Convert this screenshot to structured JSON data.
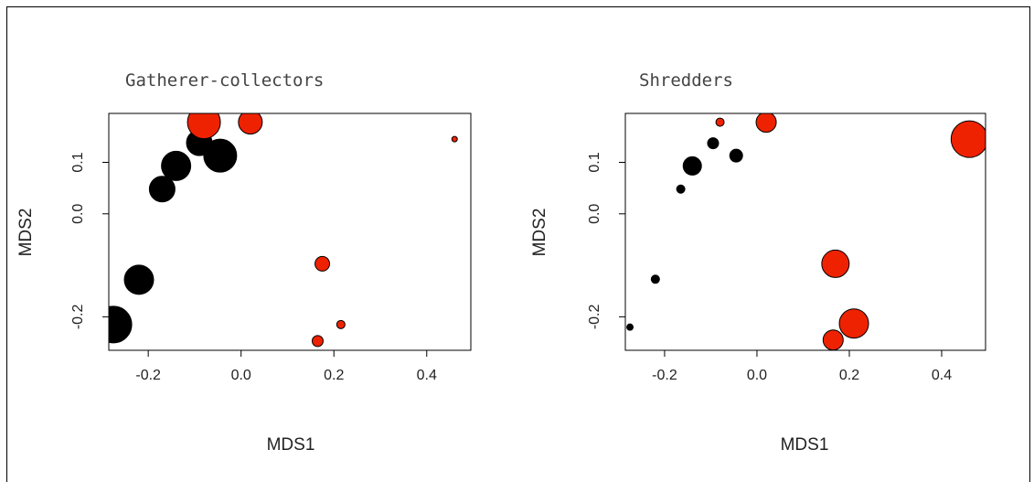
{
  "chart_data": [
    {
      "type": "scatter",
      "title": "Gatherer-collectors",
      "xlabel": "MDS1",
      "ylabel": "MDS2",
      "xlim": [
        -0.285,
        0.495
      ],
      "ylim": [
        -0.265,
        0.195
      ],
      "xticks": [
        "-0.2",
        "0.0",
        "0.2",
        "0.4"
      ],
      "yticks": [
        "-0.2",
        "0.0",
        "0.1"
      ],
      "colors": {
        "group1": "#000000",
        "group2": "#ee2200"
      },
      "points": [
        {
          "x": -0.275,
          "y": -0.215,
          "size": 20,
          "group": "group1"
        },
        {
          "x": -0.22,
          "y": -0.128,
          "size": 16,
          "group": "group1"
        },
        {
          "x": -0.17,
          "y": 0.048,
          "size": 14,
          "group": "group1"
        },
        {
          "x": -0.14,
          "y": 0.093,
          "size": 16,
          "group": "group1"
        },
        {
          "x": -0.09,
          "y": 0.138,
          "size": 14,
          "group": "group1"
        },
        {
          "x": -0.045,
          "y": 0.113,
          "size": 18,
          "group": "group1"
        },
        {
          "x": -0.08,
          "y": 0.178,
          "size": 18,
          "group": "group2"
        },
        {
          "x": 0.02,
          "y": 0.178,
          "size": 13,
          "group": "group2"
        },
        {
          "x": 0.46,
          "y": 0.145,
          "size": 3,
          "group": "group2"
        },
        {
          "x": 0.175,
          "y": -0.097,
          "size": 8,
          "group": "group2"
        },
        {
          "x": 0.215,
          "y": -0.215,
          "size": 4.5,
          "group": "group2"
        },
        {
          "x": 0.165,
          "y": -0.247,
          "size": 6,
          "group": "group2"
        }
      ]
    },
    {
      "type": "scatter",
      "title": "Shredders",
      "xlabel": "MDS1",
      "ylabel": "MDS2",
      "xlim": [
        -0.285,
        0.495
      ],
      "ylim": [
        -0.265,
        0.195
      ],
      "xticks": [
        "-0.2",
        "0.0",
        "0.2",
        "0.4"
      ],
      "yticks": [
        "-0.2",
        "0.0",
        "0.1"
      ],
      "colors": {
        "group1": "#000000",
        "group2": "#ee2200"
      },
      "points": [
        {
          "x": -0.275,
          "y": -0.22,
          "size": 3.5,
          "group": "group1"
        },
        {
          "x": -0.22,
          "y": -0.127,
          "size": 4.5,
          "group": "group1"
        },
        {
          "x": -0.165,
          "y": 0.048,
          "size": 4.5,
          "group": "group1"
        },
        {
          "x": -0.14,
          "y": 0.093,
          "size": 10,
          "group": "group1"
        },
        {
          "x": -0.095,
          "y": 0.137,
          "size": 6,
          "group": "group1"
        },
        {
          "x": -0.045,
          "y": 0.113,
          "size": 7,
          "group": "group1"
        },
        {
          "x": -0.08,
          "y": 0.178,
          "size": 4.5,
          "group": "group2"
        },
        {
          "x": 0.02,
          "y": 0.178,
          "size": 11,
          "group": "group2"
        },
        {
          "x": 0.46,
          "y": 0.145,
          "size": 20,
          "group": "group2"
        },
        {
          "x": 0.17,
          "y": -0.097,
          "size": 15,
          "group": "group2"
        },
        {
          "x": 0.21,
          "y": -0.213,
          "size": 16,
          "group": "group2"
        },
        {
          "x": 0.165,
          "y": -0.245,
          "size": 11,
          "group": "group2"
        }
      ]
    }
  ]
}
